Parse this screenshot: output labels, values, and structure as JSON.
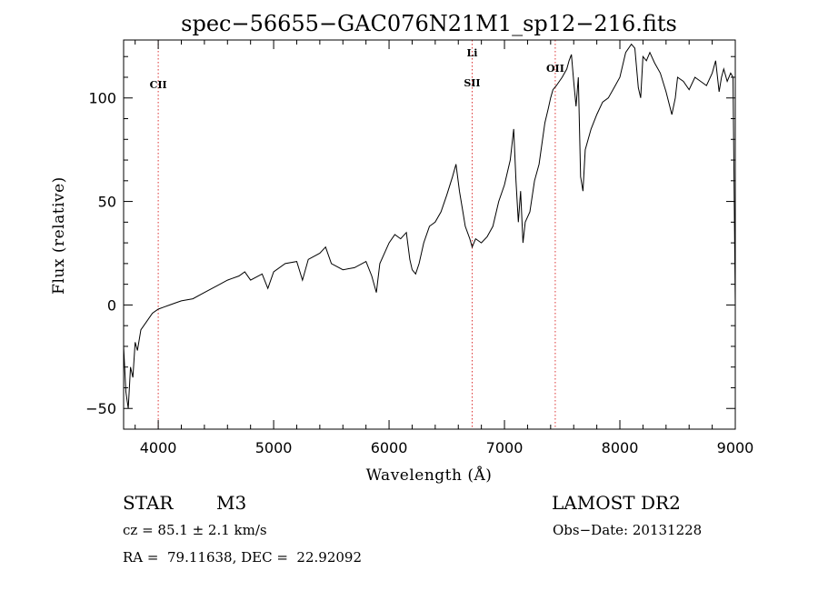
{
  "chart_data": {
    "type": "line",
    "title": "spec−56655−GAC076N21M1_sp12−216.fits",
    "xlabel": "Wavelength (Å)",
    "ylabel": "Flux (relative)",
    "xlim": [
      3700,
      9000
    ],
    "ylim": [
      -60,
      128
    ],
    "x_ticks": [
      4000,
      5000,
      6000,
      7000,
      8000,
      9000
    ],
    "y_ticks": [
      -50,
      0,
      50,
      100
    ],
    "grid": false,
    "series": [
      {
        "color": "#000000",
        "x": [
          3700,
          3720,
          3740,
          3760,
          3780,
          3800,
          3820,
          3850,
          3900,
          3950,
          4000,
          4050,
          4100,
          4150,
          4200,
          4300,
          4400,
          4500,
          4600,
          4700,
          4750,
          4800,
          4900,
          4950,
          5000,
          5100,
          5200,
          5250,
          5300,
          5400,
          5450,
          5500,
          5600,
          5700,
          5800,
          5850,
          5890,
          5920,
          6000,
          6050,
          6100,
          6150,
          6180,
          6200,
          6230,
          6260,
          6300,
          6350,
          6400,
          6450,
          6500,
          6550,
          6580,
          6610,
          6640,
          6660,
          6700,
          6720,
          6750,
          6800,
          6850,
          6900,
          6950,
          7000,
          7050,
          7080,
          7100,
          7120,
          7140,
          7160,
          7180,
          7220,
          7260,
          7300,
          7350,
          7380,
          7400,
          7420,
          7450,
          7500,
          7540,
          7560,
          7580,
          7600,
          7620,
          7640,
          7660,
          7680,
          7700,
          7750,
          7800,
          7850,
          7900,
          7950,
          8000,
          8050,
          8100,
          8130,
          8160,
          8180,
          8200,
          8230,
          8260,
          8300,
          8350,
          8400,
          8450,
          8480,
          8500,
          8550,
          8600,
          8650,
          8700,
          8750,
          8800,
          8830,
          8860,
          8880,
          8900,
          8930,
          8960,
          8980,
          9000
        ],
        "y": [
          -20,
          -42,
          -50,
          -30,
          -35,
          -18,
          -22,
          -12,
          -8,
          -4,
          -2,
          -1,
          0,
          1,
          2,
          3,
          6,
          9,
          12,
          14,
          16,
          12,
          15,
          8,
          16,
          20,
          21,
          12,
          22,
          25,
          28,
          20,
          17,
          18,
          21,
          14,
          6,
          20,
          30,
          34,
          32,
          35,
          22,
          17,
          15,
          20,
          30,
          38,
          40,
          45,
          53,
          62,
          68,
          55,
          45,
          38,
          32,
          28,
          32,
          30,
          33,
          38,
          50,
          58,
          70,
          85,
          60,
          40,
          55,
          30,
          40,
          45,
          60,
          68,
          88,
          95,
          100,
          104,
          106,
          110,
          114,
          118,
          121,
          108,
          96,
          110,
          62,
          55,
          75,
          85,
          92,
          98,
          100,
          105,
          110,
          122,
          126,
          124,
          105,
          100,
          120,
          118,
          122,
          117,
          112,
          103,
          92,
          100,
          110,
          108,
          104,
          110,
          108,
          106,
          112,
          118,
          103,
          110,
          114,
          108,
          112,
          110,
          0
        ]
      }
    ],
    "reference_lines": [
      {
        "x": 4000,
        "label": "CII",
        "color": "#dd3333"
      },
      {
        "x": 6720,
        "label": "SII",
        "label2": "Li",
        "color": "#dd3333"
      },
      {
        "x": 7440,
        "label": "OII",
        "color": "#dd3333"
      }
    ]
  },
  "info": {
    "class_label": "STAR",
    "subclass": "M3",
    "survey": "LAMOST DR2",
    "cz": "cz = 85.1 ± 2.1 km/s",
    "obsdate": "Obs−Date: 20131228",
    "coords": "RA =  79.11638, DEC =  22.92092"
  }
}
